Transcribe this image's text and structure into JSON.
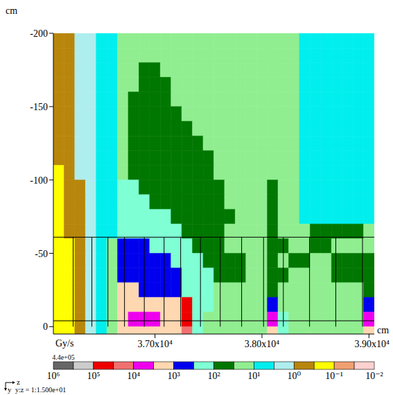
{
  "chart_data": {
    "type": "heatmap",
    "x_unit": "cm",
    "y_unit": "cm",
    "xlim": [
      36050,
      39050
    ],
    "xticks": [
      {
        "value": 37000,
        "label": "3.70x10⁴"
      },
      {
        "value": 38000,
        "label": "3.80x10⁴"
      },
      {
        "value": 39000,
        "label": "3.90x10⁴"
      }
    ],
    "ylim": [
      -200,
      5
    ],
    "yticks": [
      -200,
      -150,
      -100,
      -50,
      0
    ],
    "z_edges": [
      36050,
      36150,
      36250,
      36350,
      36450,
      36550,
      36650,
      36750,
      36850,
      36950,
      37050,
      37150,
      37250,
      37350,
      37450,
      37550,
      37650,
      37750,
      37850,
      37950,
      38050,
      38150,
      38250,
      38350,
      38450,
      38550,
      38650,
      38750,
      38850,
      38950,
      39050
    ],
    "y_edges": [
      -200,
      -190,
      -180,
      -170,
      -160,
      -150,
      -140,
      -130,
      -120,
      -110,
      -100,
      -90,
      -80,
      -70,
      -60,
      -50,
      -40,
      -30,
      -20,
      -10,
      0,
      5
    ],
    "dose": [
      [
        0.5,
        0.5,
        2,
        2,
        5,
        5,
        20,
        20,
        20,
        20,
        20,
        20,
        20,
        20,
        20,
        20,
        20,
        20,
        20,
        20,
        20,
        20,
        20,
        5,
        5,
        5,
        5,
        5,
        5,
        5
      ],
      [
        0.5,
        0.5,
        2,
        2,
        5,
        5,
        20,
        20,
        20,
        20,
        20,
        20,
        20,
        20,
        20,
        20,
        20,
        20,
        20,
        20,
        20,
        20,
        20,
        5,
        5,
        5,
        5,
        5,
        5,
        5
      ],
      [
        0.5,
        0.5,
        2,
        2,
        5,
        5,
        20,
        20,
        50,
        50,
        20,
        20,
        20,
        20,
        20,
        20,
        20,
        20,
        20,
        20,
        20,
        20,
        20,
        5,
        5,
        5,
        5,
        5,
        5,
        5
      ],
      [
        0.5,
        0.5,
        2,
        2,
        5,
        5,
        20,
        20,
        50,
        50,
        50,
        20,
        20,
        20,
        20,
        20,
        20,
        20,
        20,
        20,
        20,
        20,
        20,
        5,
        5,
        5,
        5,
        5,
        5,
        5
      ],
      [
        0.5,
        0.5,
        2,
        2,
        5,
        5,
        20,
        50,
        50,
        50,
        50,
        20,
        20,
        20,
        20,
        20,
        20,
        20,
        20,
        20,
        20,
        20,
        20,
        5,
        5,
        5,
        5,
        5,
        5,
        5
      ],
      [
        0.5,
        0.5,
        2,
        2,
        5,
        5,
        20,
        50,
        50,
        50,
        50,
        50,
        20,
        20,
        20,
        20,
        20,
        20,
        20,
        20,
        20,
        20,
        20,
        5,
        5,
        5,
        5,
        5,
        5,
        5
      ],
      [
        0.5,
        0.5,
        2,
        2,
        5,
        5,
        20,
        50,
        50,
        50,
        50,
        50,
        50,
        20,
        20,
        20,
        20,
        20,
        20,
        20,
        20,
        20,
        20,
        5,
        5,
        5,
        5,
        5,
        5,
        5
      ],
      [
        0.5,
        0.5,
        2,
        2,
        5,
        5,
        20,
        50,
        50,
        50,
        50,
        50,
        50,
        50,
        20,
        20,
        20,
        20,
        20,
        20,
        20,
        20,
        20,
        5,
        5,
        5,
        5,
        5,
        5,
        5
      ],
      [
        0.5,
        0.5,
        2,
        2,
        5,
        5,
        20,
        50,
        50,
        50,
        50,
        50,
        50,
        50,
        50,
        20,
        20,
        20,
        20,
        20,
        20,
        20,
        20,
        5,
        5,
        5,
        5,
        5,
        5,
        5
      ],
      [
        0.2,
        0.5,
        2,
        2,
        5,
        5,
        20,
        50,
        50,
        50,
        50,
        50,
        50,
        50,
        50,
        20,
        20,
        20,
        20,
        20,
        20,
        20,
        20,
        5,
        5,
        5,
        5,
        5,
        5,
        5
      ],
      [
        0.2,
        0.5,
        0.5,
        2,
        5,
        5,
        200,
        200,
        50,
        50,
        50,
        50,
        50,
        50,
        50,
        50,
        20,
        20,
        20,
        20,
        50,
        20,
        20,
        5,
        5,
        5,
        5,
        5,
        5,
        5
      ],
      [
        0.2,
        0.5,
        0.5,
        2,
        5,
        5,
        200,
        200,
        200,
        50,
        50,
        50,
        50,
        50,
        50,
        50,
        20,
        20,
        20,
        20,
        50,
        20,
        20,
        5,
        5,
        5,
        5,
        5,
        5,
        5
      ],
      [
        0.2,
        0.5,
        0.5,
        2,
        5,
        5,
        200,
        200,
        200,
        200,
        200,
        50,
        50,
        50,
        50,
        50,
        50,
        20,
        20,
        20,
        50,
        20,
        20,
        5,
        5,
        5,
        5,
        5,
        5,
        5
      ],
      [
        0.2,
        0.5,
        0.5,
        2,
        5,
        5,
        200,
        200,
        200,
        200,
        200,
        200,
        50,
        50,
        50,
        50,
        20,
        20,
        20,
        20,
        50,
        20,
        20,
        20,
        50,
        50,
        50,
        50,
        50,
        20
      ],
      [
        0.2,
        0.2,
        0.5,
        2,
        5,
        20,
        500,
        500,
        500,
        200,
        200,
        200,
        200,
        50,
        50,
        50,
        20,
        20,
        20,
        20,
        50,
        50,
        20,
        20,
        50,
        50,
        20,
        20,
        20,
        20
      ],
      [
        0.2,
        0.2,
        0.5,
        2,
        5,
        20,
        500,
        500,
        500,
        500,
        500,
        200,
        200,
        200,
        50,
        50,
        50,
        50,
        20,
        20,
        50,
        20,
        50,
        50,
        20,
        20,
        50,
        50,
        50,
        50
      ],
      [
        0.2,
        0.2,
        0.5,
        2,
        5,
        20,
        500,
        500,
        500,
        500,
        500,
        500,
        200,
        200,
        200,
        50,
        50,
        50,
        20,
        20,
        50,
        50,
        20,
        20,
        20,
        20,
        50,
        50,
        50,
        50
      ],
      [
        0.2,
        0.2,
        0.5,
        2,
        5,
        20,
        2000,
        2000,
        500,
        500,
        500,
        500,
        200,
        200,
        200,
        20,
        20,
        20,
        20,
        20,
        50,
        20,
        20,
        20,
        20,
        20,
        20,
        20,
        20,
        50
      ],
      [
        0.2,
        0.2,
        0.5,
        2,
        5,
        20,
        2000,
        2000,
        2000,
        2000,
        2000,
        2000,
        50000,
        200,
        200,
        20,
        20,
        20,
        20,
        20,
        500,
        20,
        20,
        20,
        20,
        20,
        20,
        20,
        20,
        500
      ],
      [
        0.2,
        0.2,
        0.5,
        2,
        5,
        20,
        2000,
        5000,
        5000,
        5000,
        2000,
        2000,
        50000,
        200,
        20,
        20,
        20,
        20,
        20,
        20,
        5000,
        200,
        20,
        20,
        20,
        20,
        20,
        20,
        20,
        5000
      ],
      [
        0.2,
        0.2,
        0.5,
        2,
        5,
        20,
        2000,
        2000,
        2000,
        2000,
        2000,
        2000,
        20000,
        200,
        20,
        20,
        20,
        20,
        20,
        20,
        2000,
        200,
        20,
        20,
        20,
        20,
        20,
        20,
        20,
        2000
      ]
    ],
    "geometry": {
      "y_lines": [
        -61,
        -4
      ],
      "z_span": [
        36050,
        39050
      ],
      "y_span": [
        -61,
        0
      ],
      "z_lines": [
        36235,
        36410,
        36560,
        36715,
        36900,
        37085,
        37240,
        37425,
        37610,
        37810,
        38015,
        38200,
        38445,
        38690,
        38940
      ]
    },
    "colorbar": {
      "unit": "Gy/s",
      "log": true,
      "range": [
        1000000,
        0.01
      ],
      "bounds": [
        1000000,
        316228,
        100000,
        31623,
        10000,
        3162.3,
        1000,
        316.23,
        100,
        31.623,
        10,
        3.1623,
        1,
        0.31623,
        0.1,
        0.031623,
        0.01
      ],
      "colors": [
        "#666666",
        "#cccccc",
        "#ee0000",
        "#f07070",
        "#ee00ee",
        "#ffd7b0",
        "#0000ee",
        "#7fffd4",
        "#007700",
        "#90ee90",
        "#00eeee",
        "#aeeeee",
        "#b8860b",
        "#ffff00",
        "#f0a070",
        "#ffd0d0"
      ],
      "ticks": [
        {
          "value": 1000000,
          "label": "10⁶"
        },
        {
          "value": 100000,
          "label": "10⁵"
        },
        {
          "value": 10000,
          "label": "10⁴"
        },
        {
          "value": 1000,
          "label": "10³"
        },
        {
          "value": 100,
          "label": "10²"
        },
        {
          "value": 10,
          "label": "10¹"
        },
        {
          "value": 1,
          "label": "10⁰"
        },
        {
          "value": 0.1,
          "label": "10⁻¹"
        },
        {
          "value": 0.01,
          "label": "10⁻²"
        }
      ],
      "max": {
        "value": 440000,
        "label": "4.4e+05"
      }
    },
    "axis_glyph": {
      "horizontal": "z",
      "vertical": "y",
      "aspect": "y:z = 1:1.500e+01"
    }
  }
}
